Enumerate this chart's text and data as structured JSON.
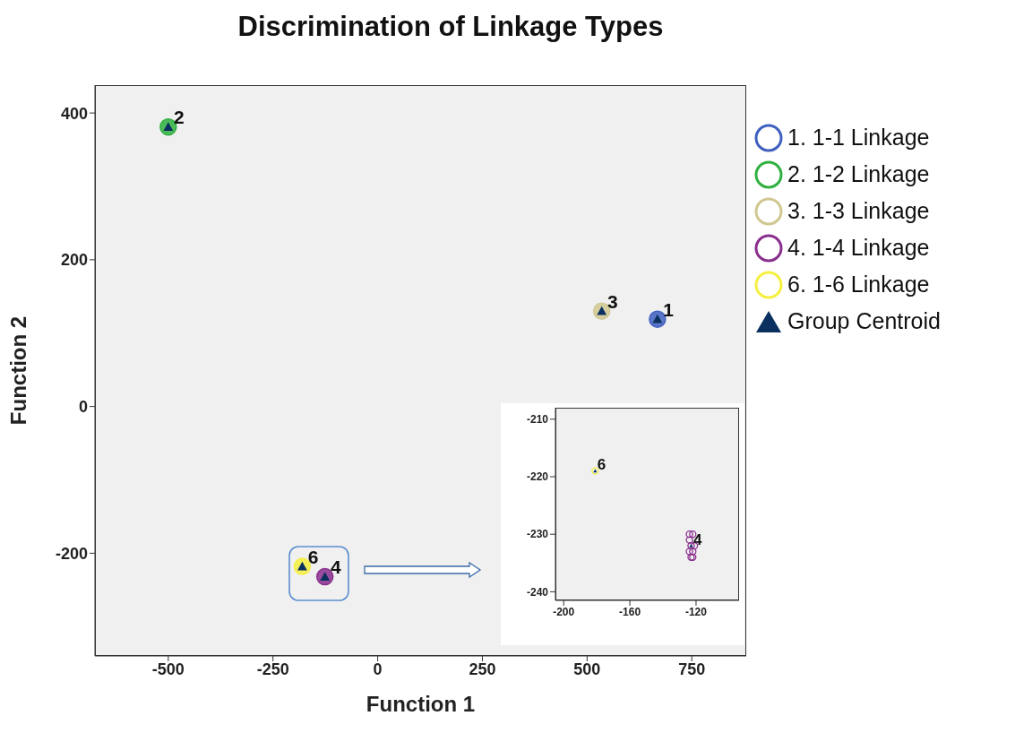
{
  "chart_data": [
    {
      "type": "scatter",
      "title": "Discrimination of Linkage Types",
      "xlabel": "Function 1",
      "ylabel": "Function 2",
      "xlim": [
        -675,
        880
      ],
      "ylim": [
        -340,
        438
      ],
      "xticks": [
        -500,
        -250,
        0,
        250,
        500,
        750
      ],
      "yticks": [
        -200,
        0,
        200,
        400
      ],
      "legend": "top right",
      "marker": "circle",
      "grid": false,
      "series": [
        {
          "name": "1. 1-1 Linkage",
          "color": "#4060c0",
          "x": [
            668
          ],
          "values": [
            119
          ]
        },
        {
          "name": "2. 1-2 Linkage",
          "color": "#30b040",
          "x": [
            -500
          ],
          "values": [
            381
          ]
        },
        {
          "name": "3. 1-3 Linkage",
          "color": "#d0c890",
          "x": [
            535
          ],
          "values": [
            130
          ]
        },
        {
          "name": "4. 1-4 Linkage",
          "color": "#8a2e8e",
          "x": [
            -126
          ],
          "values": [
            -232
          ]
        },
        {
          "name": "6. 1-6 Linkage",
          "color": "#f5f040",
          "x": [
            -180
          ],
          "values": [
            -218
          ]
        },
        {
          "name": "Group Centroid",
          "color": "#0a3060",
          "marker": "triangle",
          "x": [
            668,
            -500,
            535,
            -126,
            -180
          ],
          "values": [
            119,
            381,
            130,
            -232,
            -218
          ]
        }
      ],
      "annotations": [
        {
          "text": "1",
          "x": 668,
          "y": 119
        },
        {
          "text": "2",
          "x": -500,
          "y": 381
        },
        {
          "text": "3",
          "x": 535,
          "y": 130
        },
        {
          "text": "4",
          "x": -126,
          "y": -232
        },
        {
          "text": "6",
          "x": -180,
          "y": -218
        }
      ]
    },
    {
      "type": "scatter",
      "xlim": [
        -205,
        -94
      ],
      "ylim": [
        -241.5,
        -208
      ],
      "xticks": [
        -200,
        -160,
        -120
      ],
      "yticks": [
        -240,
        -230,
        -220,
        -210
      ],
      "marker": "circle",
      "grid": false,
      "series": [
        {
          "color": "#8a2e8e",
          "x": [
            -124,
            -122,
            -124,
            -123,
            -121,
            -124,
            -122,
            -123,
            -122
          ],
          "values": [
            -230,
            -230,
            -231,
            -232,
            -232,
            -233,
            -233,
            -234,
            -234
          ]
        },
        {
          "color": "#f5f040",
          "x": [
            -181
          ],
          "values": [
            -219
          ]
        },
        {
          "color": "#0a3060",
          "marker": "triangle",
          "x": [
            -123,
            -181
          ],
          "values": [
            -232,
            -219
          ]
        }
      ],
      "annotations": [
        {
          "text": "6",
          "x": -181,
          "y": -219
        },
        {
          "text": "4",
          "x": -123,
          "y": -232
        }
      ]
    }
  ]
}
